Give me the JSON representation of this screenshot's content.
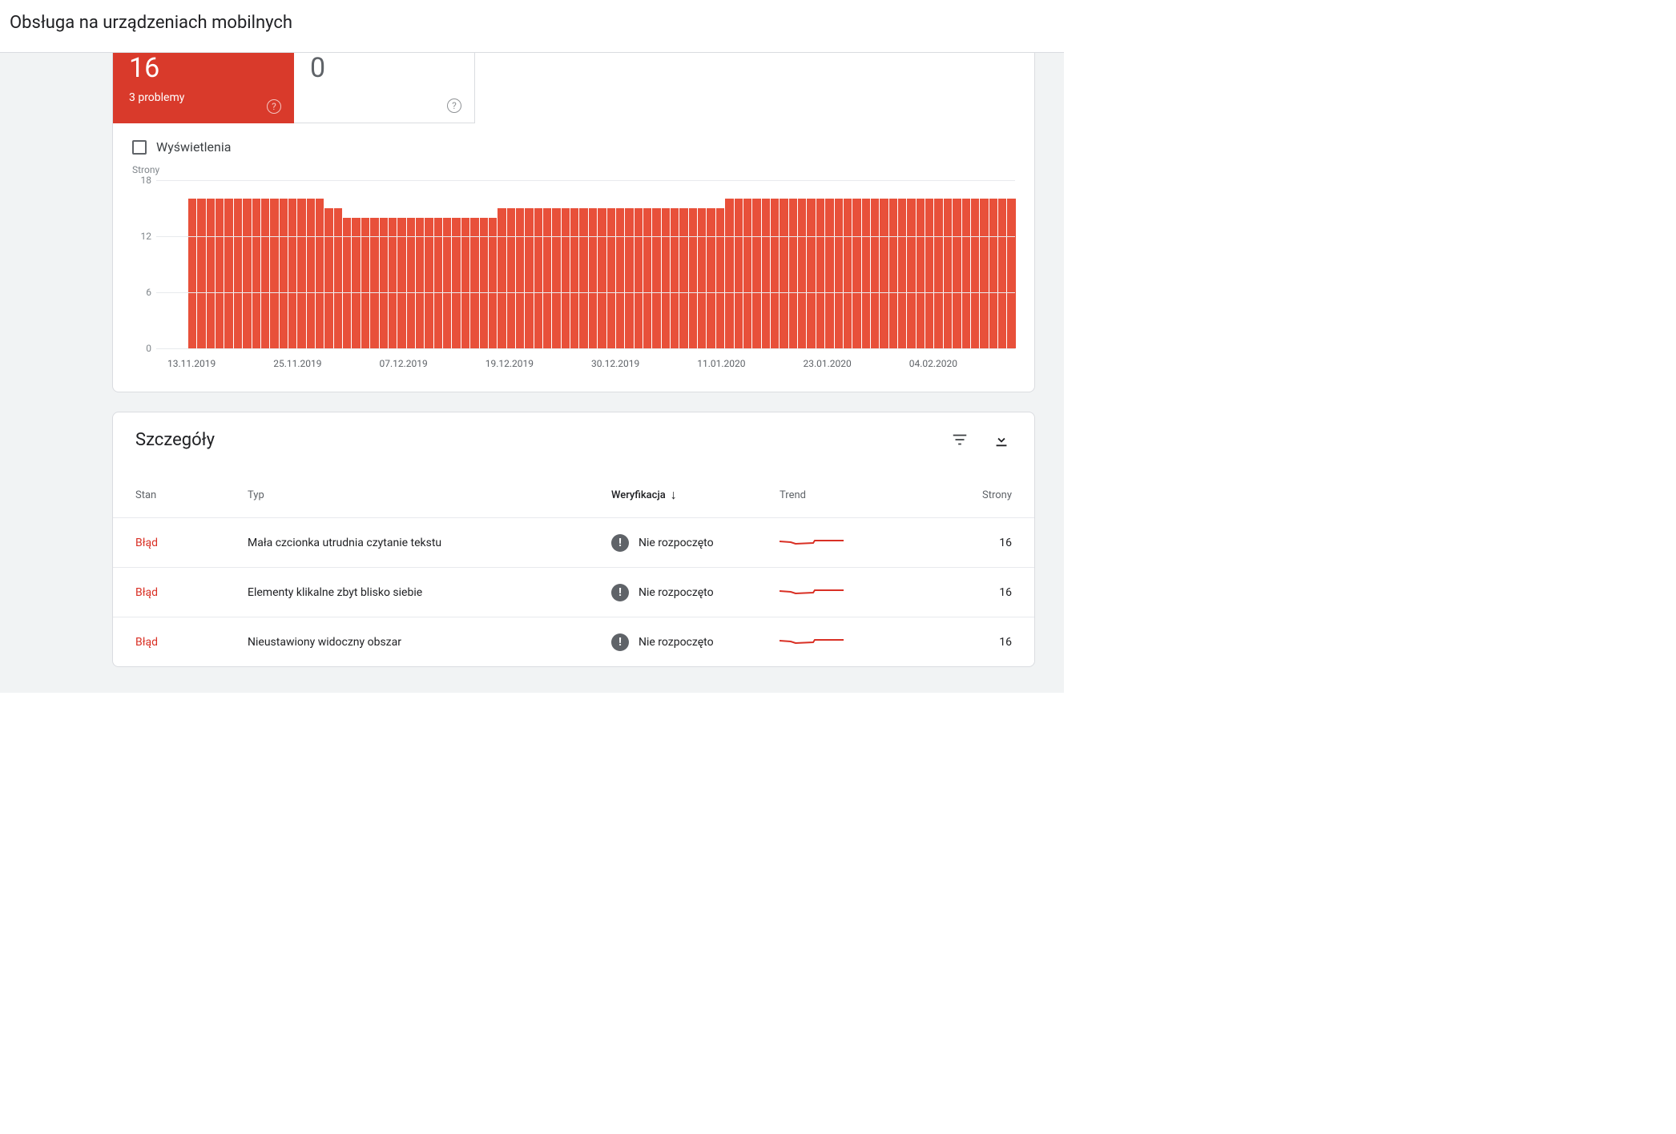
{
  "header": {
    "title": "Obsługa na urządzeniach mobilnych"
  },
  "summary": {
    "error": {
      "value": "16",
      "sub": "3 problemy"
    },
    "valid": {
      "value": "0"
    }
  },
  "impressions_label": "Wyświetlenia",
  "chart": {
    "type": "bar",
    "y_axis_title": "Strony",
    "ylim": [
      0,
      18
    ],
    "yticks": [
      0,
      6,
      12,
      18
    ],
    "bar_color": "#e8503a",
    "grid_color": "#e8eaed",
    "background_color": "#ffffff",
    "x_labels": [
      "13.11.2019",
      "25.11.2019",
      "07.12.2019",
      "19.12.2019",
      "30.12.2019",
      "11.01.2020",
      "23.01.2020",
      "04.02.2020"
    ],
    "values": [
      16,
      16,
      16,
      16,
      16,
      16,
      16,
      16,
      16,
      16,
      16,
      16,
      16,
      16,
      16,
      15,
      15,
      14,
      14,
      14,
      14,
      14,
      14,
      14,
      14,
      14,
      14,
      14,
      14,
      14,
      14,
      14,
      14,
      14,
      15,
      15,
      15,
      15,
      15,
      15,
      15,
      15,
      15,
      15,
      15,
      15,
      15,
      15,
      15,
      15,
      15,
      15,
      15,
      15,
      15,
      15,
      15,
      15,
      15,
      16,
      16,
      16,
      16,
      16,
      16,
      16,
      16,
      16,
      16,
      16,
      16,
      16,
      16,
      16,
      16,
      16,
      16,
      16,
      16,
      16,
      16,
      16,
      16,
      16,
      16,
      16,
      16,
      16,
      16,
      16,
      16
    ]
  },
  "details": {
    "title": "Szczegóły",
    "columns": {
      "status": "Stan",
      "type": "Typ",
      "verification": "Weryfikacja",
      "trend": "Trend",
      "pages": "Strony"
    },
    "trend_color": "#d93025",
    "rows": [
      {
        "status": "Błąd",
        "type": "Mała czcionka utrudnia czytanie tekstu",
        "verification": "Nie rozpoczęto",
        "pages": "16"
      },
      {
        "status": "Błąd",
        "type": "Elementy klikalne zbyt blisko siebie",
        "verification": "Nie rozpoczęto",
        "pages": "16"
      },
      {
        "status": "Błąd",
        "type": "Nieustawiony widoczny obszar",
        "verification": "Nie rozpoczęto",
        "pages": "16"
      }
    ]
  }
}
